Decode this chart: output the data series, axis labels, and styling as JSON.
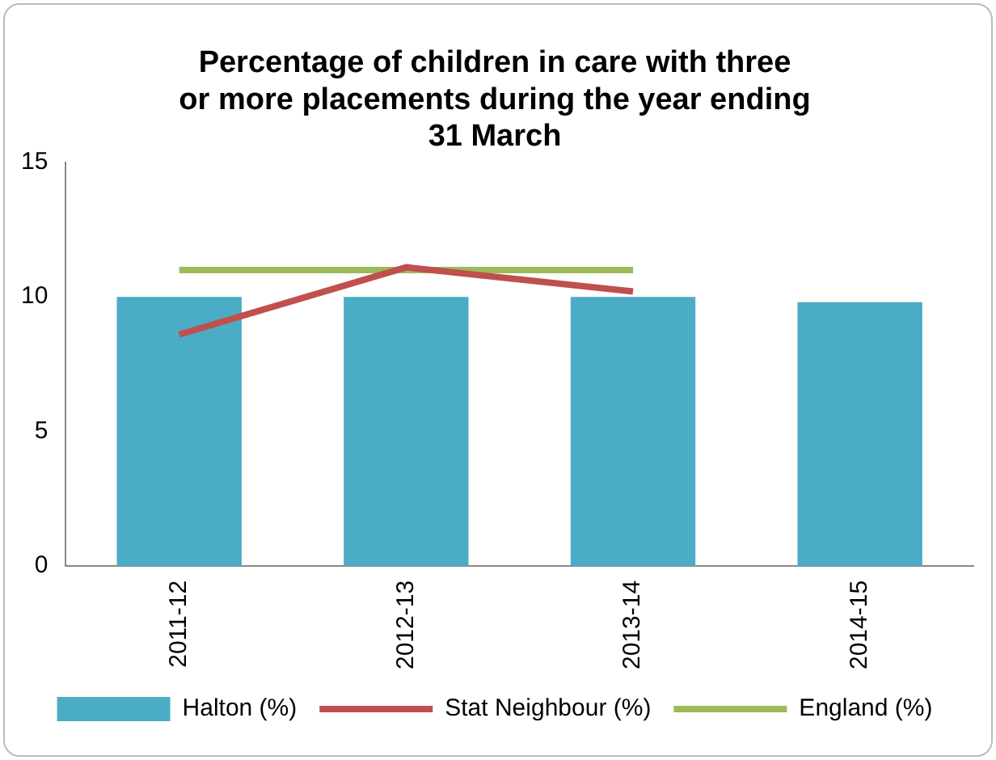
{
  "chart_data": {
    "type": "bar",
    "title": "Percentage of children in care with three\nor more placements during the year ending\n31 March",
    "categories": [
      "2011-12",
      "2012-13",
      "2013-14",
      "2014-15"
    ],
    "series": [
      {
        "name": "Halton (%)",
        "color": "#4bacc6",
        "values": [
          10,
          10,
          10,
          9.8
        ]
      },
      {
        "name": "Stat Neighbour (%)",
        "type": "line",
        "color": "#c0504d",
        "values": [
          8.6,
          11.1,
          10.2,
          null
        ]
      },
      {
        "name": "England (%)",
        "type": "line",
        "color": "#9bbb59",
        "values": [
          11,
          11,
          11,
          null
        ]
      }
    ],
    "ylim": [
      0,
      15
    ],
    "yticks": [
      0,
      5,
      10,
      15
    ],
    "grid": false,
    "legend": "bottom",
    "marker": "none",
    "line_style": "solid"
  }
}
